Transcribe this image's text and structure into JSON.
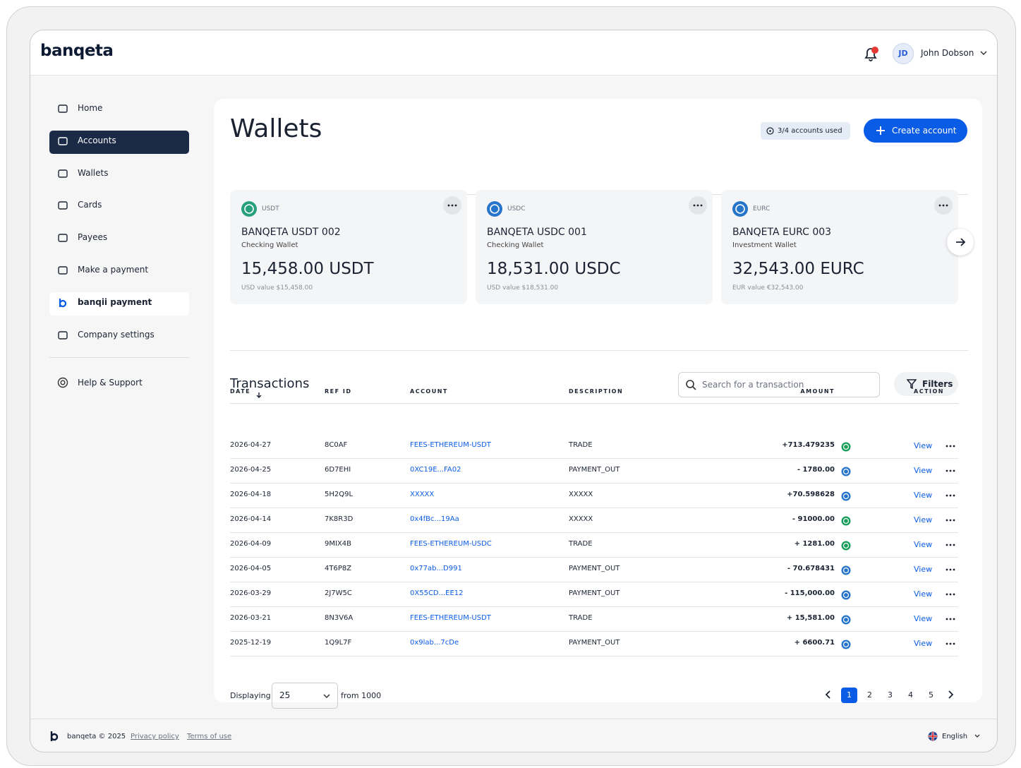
{
  "header": {
    "logo": "banqeta",
    "user_initials": "JD",
    "user_name": "John Dobson"
  },
  "sidebar": {
    "nav": [
      "Home",
      "Accounts",
      "Wallets",
      "Cards",
      "Payees",
      "Make a payment",
      "banqii payment",
      "Company settings"
    ],
    "active": 1,
    "highlight": 6,
    "support": "Help & Support"
  },
  "page": {
    "title": "Wallets",
    "usage": "3/4 accounts used",
    "create_button": "Create account"
  },
  "wallets": [
    {
      "currency": "USDT",
      "name": "BANQETA USDT 002",
      "kind": "Checking Wallet",
      "balance": "15,458.00 USDT",
      "value": "USD value $15,458.00",
      "color": "#26a17b"
    },
    {
      "currency": "USDC",
      "name": "BANQETA USDC 001",
      "kind": "Checking Wallet",
      "balance": "18,531.00 USDC",
      "value": "USD value $18,531.00",
      "color": "#2775ca"
    },
    {
      "currency": "EURC",
      "name": "BANQETA EURC 003",
      "kind": "Investment Wallet",
      "balance": "32,543.00 EURC",
      "value": "EUR value €32,543.00",
      "color": "#2775ca"
    }
  ],
  "transactions": {
    "title": "Transactions",
    "search_placeholder": "Search for a transaction",
    "filters": "Filters",
    "columns": [
      "DATE",
      "REF ID",
      "ACCOUNT",
      "DESCRIPTION",
      "AMOUNT",
      "ACTION"
    ],
    "rows": [
      {
        "date": "2026-04-27",
        "ref": "8C0AF",
        "account": "FEES-ETHEREUM-USDT",
        "description": "TRADE",
        "amount": "+713.479235",
        "action": "View",
        "coin_color": "#1a9e5c"
      },
      {
        "date": "2026-04-25",
        "ref": "6D7EHI",
        "account": "0XC19E...FA02",
        "description": "PAYMENT_OUT",
        "amount": "- 1780.00",
        "action": "View",
        "coin_color": "#2775ca"
      },
      {
        "date": "2026-04-18",
        "ref": "5H2Q9L",
        "account": "XXXXX",
        "description": "XXXXX",
        "amount": "+70.598628",
        "action": "View",
        "coin_color": "#2775ca"
      },
      {
        "date": "2026-04-14",
        "ref": "7K8R3D",
        "account": "0x4fBc...19Aa",
        "description": "XXXXX",
        "amount": "- 91000.00",
        "action": "View",
        "coin_color": "#1a9e5c"
      },
      {
        "date": "2026-04-09",
        "ref": "9MIX4B",
        "account": "FEES-ETHEREUM-USDC",
        "description": "TRADE",
        "amount": "+ 1281.00",
        "action": "View",
        "coin_color": "#1a9e5c"
      },
      {
        "date": "2026-04-05",
        "ref": "4T6P8Z",
        "account": "0x77ab...D991",
        "description": "PAYMENT_OUT",
        "amount": "- 70.678431",
        "action": "View",
        "coin_color": "#2775ca"
      },
      {
        "date": "2026-03-29",
        "ref": "2J7W5C",
        "account": "0X55CD...EE12",
        "description": "PAYMENT_OUT",
        "amount": "- 115,000.00",
        "action": "View",
        "coin_color": "#2775ca"
      },
      {
        "date": "2026-03-21",
        "ref": "8N3V6A",
        "account": "FEES-ETHEREUM-USDT",
        "description": "TRADE",
        "amount": "+ 15,581.00",
        "action": "View",
        "coin_color": "#2775ca"
      },
      {
        "date": "2025-12-19",
        "ref": "1Q9L7F",
        "account": "0x9lab...7cDe",
        "description": "PAYMENT_OUT",
        "amount": "+ 6600.71",
        "action": "View",
        "coin_color": "#2775ca"
      }
    ]
  },
  "pagination": {
    "label": "Displaying",
    "page_size": "25",
    "total": "from 1000",
    "pages": [
      "1",
      "2",
      "3",
      "4",
      "5"
    ],
    "current": 0
  },
  "footer": {
    "brand": "banqeta © 2025",
    "privacy": "Privacy policy",
    "terms": "Terms of use",
    "language": "English"
  }
}
